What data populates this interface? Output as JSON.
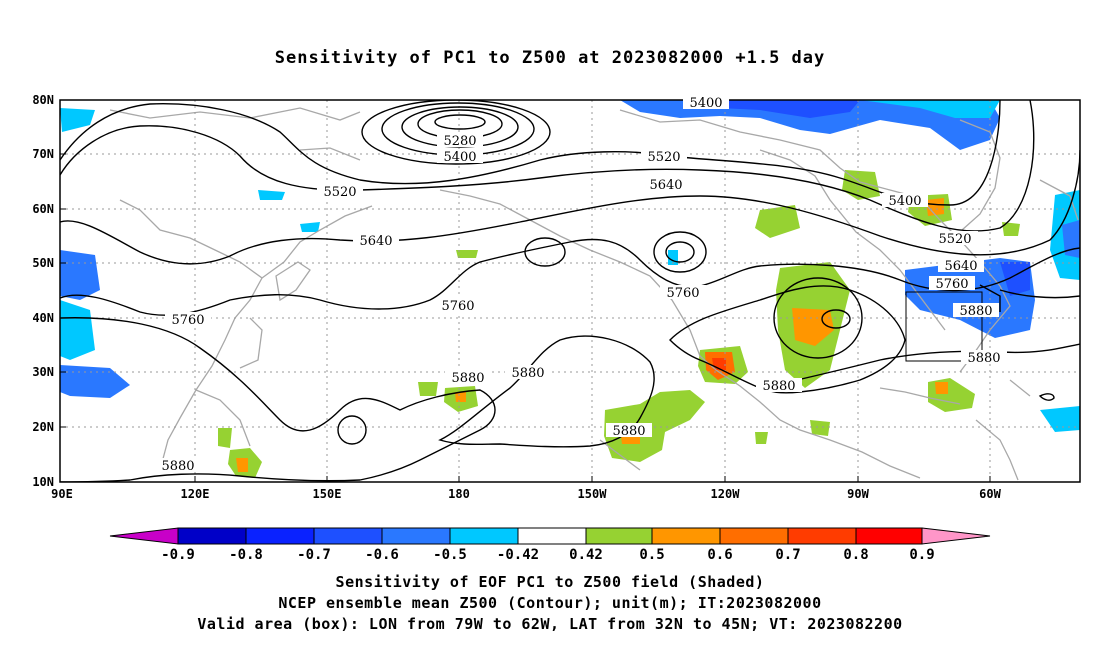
{
  "title": "Sensitivity of PC1 to Z500 at 2023082000 +1.5 day",
  "lat_labels": [
    "80N",
    "70N",
    "60N",
    "50N",
    "40N",
    "30N",
    "20N",
    "10N"
  ],
  "lon_labels": [
    "90E",
    "120E",
    "150E",
    "180",
    "150W",
    "120W",
    "90W",
    "60W"
  ],
  "contour_labels": [
    "5280",
    "5400",
    "5400",
    "5400",
    "5520",
    "5520",
    "5520",
    "5640",
    "5640",
    "5640",
    "5760",
    "5760",
    "5760",
    "5760",
    "5880",
    "5880",
    "5880",
    "5880",
    "5880",
    "5880",
    "5880"
  ],
  "colorbar": {
    "labels": [
      "-0.9",
      "-0.8",
      "-0.7",
      "-0.6",
      "-0.5",
      "-0.42",
      "0.42",
      "0.5",
      "0.6",
      "0.7",
      "0.8",
      "0.9"
    ],
    "colors": [
      "#c800c8",
      "#0000c8",
      "#0a22ff",
      "#1e50ff",
      "#2a78ff",
      "#00c8ff",
      "#ffffff",
      "#96d232",
      "#ff9600",
      "#ff6e00",
      "#ff3c00",
      "#ff0000",
      "#ff96c8"
    ]
  },
  "captions": [
    "Sensitivity of EOF PC1 to Z500 field (Shaded)",
    "NCEP ensemble mean Z500 (Contour); unit(m); IT:2023082000",
    "Valid area (box): LON from 79W to 62W, LAT from 32N to 45N; VT: 2023082200"
  ]
}
